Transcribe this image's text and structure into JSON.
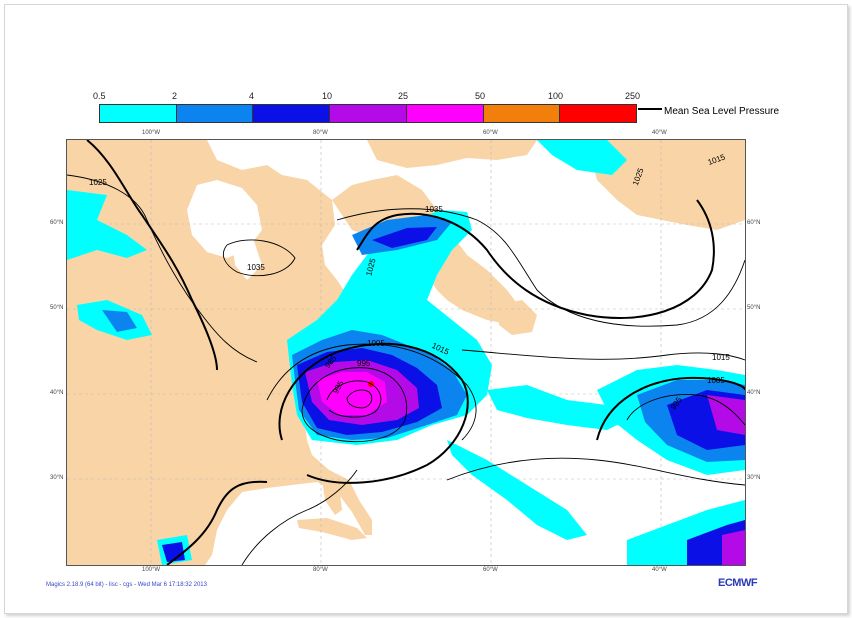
{
  "legend": {
    "thresholds": [
      "0.5",
      "2",
      "4",
      "10",
      "25",
      "50",
      "100",
      "250"
    ],
    "colors": [
      "#00ffff",
      "#0c84f0",
      "#0a10e6",
      "#b40ae8",
      "#ff00ff",
      "#f27f0c",
      "#ff0000"
    ],
    "mslp_label": "Mean Sea Level Pressure"
  },
  "map": {
    "lon_labels": [
      "100°W",
      "80°W",
      "60°W",
      "40°W"
    ],
    "lat_labels": [
      "60°N",
      "50°N",
      "40°N",
      "30°N"
    ],
    "contour_labels": [
      "1025",
      "1035",
      "1035",
      "1025",
      "1025",
      "1015",
      "1005",
      "1015",
      "1015",
      "1005",
      "995",
      "995",
      "985",
      "995"
    ],
    "land_color": "#f9d4a6",
    "ocean_color": "#ffffff"
  },
  "footer": {
    "software": "Magics 2.18.9 (64 bit) - lisc - cgs - Wed Mar  6 17:18:32 2013",
    "logo": "ECMWF"
  }
}
